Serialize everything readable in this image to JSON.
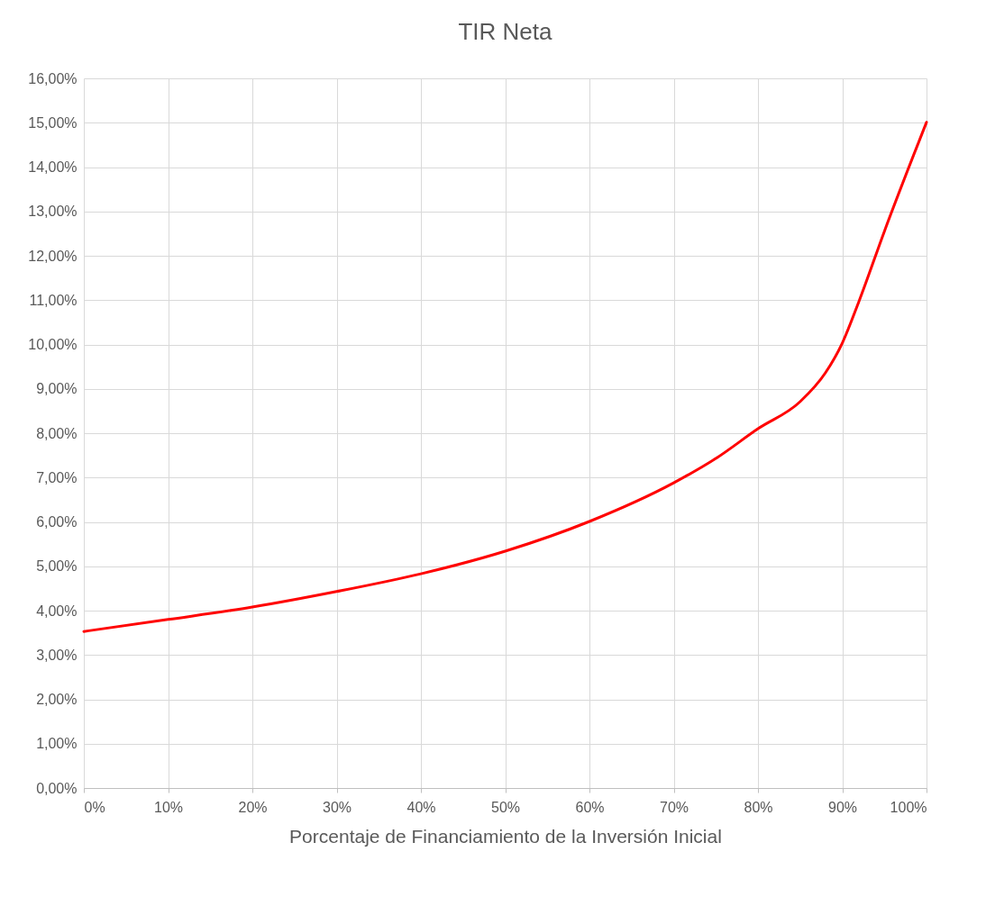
{
  "chart_data": {
    "type": "line",
    "title": "TIR Neta",
    "xlabel": "Porcentaje de Financiamiento de la Inversión Inicial",
    "x": [
      0,
      10,
      20,
      30,
      40,
      50,
      60,
      70,
      75,
      80,
      85,
      88,
      90,
      92,
      95,
      100
    ],
    "series": [
      {
        "color": "#ff0000",
        "values": [
          3.53,
          3.8,
          4.08,
          4.43,
          4.83,
          5.34,
          6.01,
          6.88,
          7.43,
          8.1,
          8.71,
          9.36,
          10.03,
          10.98,
          12.55,
          15.01
        ]
      }
    ],
    "xlim": [
      0,
      100
    ],
    "ylim": [
      0,
      16
    ],
    "xticks": [
      {
        "value": 0,
        "label": "0%"
      },
      {
        "value": 10,
        "label": "10%"
      },
      {
        "value": 20,
        "label": "20%"
      },
      {
        "value": 30,
        "label": "30%"
      },
      {
        "value": 40,
        "label": "40%"
      },
      {
        "value": 50,
        "label": "50%"
      },
      {
        "value": 60,
        "label": "60%"
      },
      {
        "value": 70,
        "label": "70%"
      },
      {
        "value": 80,
        "label": "80%"
      },
      {
        "value": 90,
        "label": "90%"
      },
      {
        "value": 100,
        "label": "100%"
      }
    ],
    "yticks": [
      {
        "value": 0,
        "label": "0,00%"
      },
      {
        "value": 1,
        "label": "1,00%"
      },
      {
        "value": 2,
        "label": "2,00%"
      },
      {
        "value": 3,
        "label": "3,00%"
      },
      {
        "value": 4,
        "label": "4,00%"
      },
      {
        "value": 5,
        "label": "5,00%"
      },
      {
        "value": 6,
        "label": "6,00%"
      },
      {
        "value": 7,
        "label": "7,00%"
      },
      {
        "value": 8,
        "label": "8,00%"
      },
      {
        "value": 9,
        "label": "9,00%"
      },
      {
        "value": 10,
        "label": "10,00%"
      },
      {
        "value": 11,
        "label": "11,00%"
      },
      {
        "value": 12,
        "label": "12,00%"
      },
      {
        "value": 13,
        "label": "13,00%"
      },
      {
        "value": 14,
        "label": "14,00%"
      },
      {
        "value": 15,
        "label": "15,00%"
      },
      {
        "value": 16,
        "label": "16,00%"
      }
    ],
    "grid": true,
    "marker": "none",
    "line_style": "solid"
  }
}
